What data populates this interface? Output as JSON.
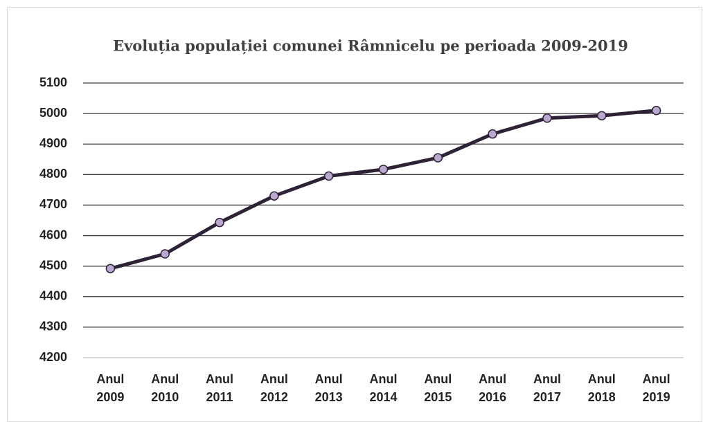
{
  "chart_data": {
    "type": "line",
    "title": "Evoluția populației comunei Râmnicelu pe perioada 2009-2019",
    "categories": [
      "Anul 2009",
      "Anul 2010",
      "Anul 2011",
      "Anul 2012",
      "Anul 2013",
      "Anul 2014",
      "Anul 2015",
      "Anul 2016",
      "Anul 2017",
      "Anul 2018",
      "Anul 2019"
    ],
    "values": [
      4492,
      4540,
      4643,
      4730,
      4795,
      4817,
      4855,
      4933,
      4985,
      4993,
      5010
    ],
    "color": "#2e2236",
    "marker_color": "#b9a9cf",
    "ylim": [
      4200,
      5100
    ],
    "yticks": [
      4200,
      4300,
      4400,
      4500,
      4600,
      4700,
      4800,
      4900,
      5000,
      5100
    ],
    "grid": true
  }
}
